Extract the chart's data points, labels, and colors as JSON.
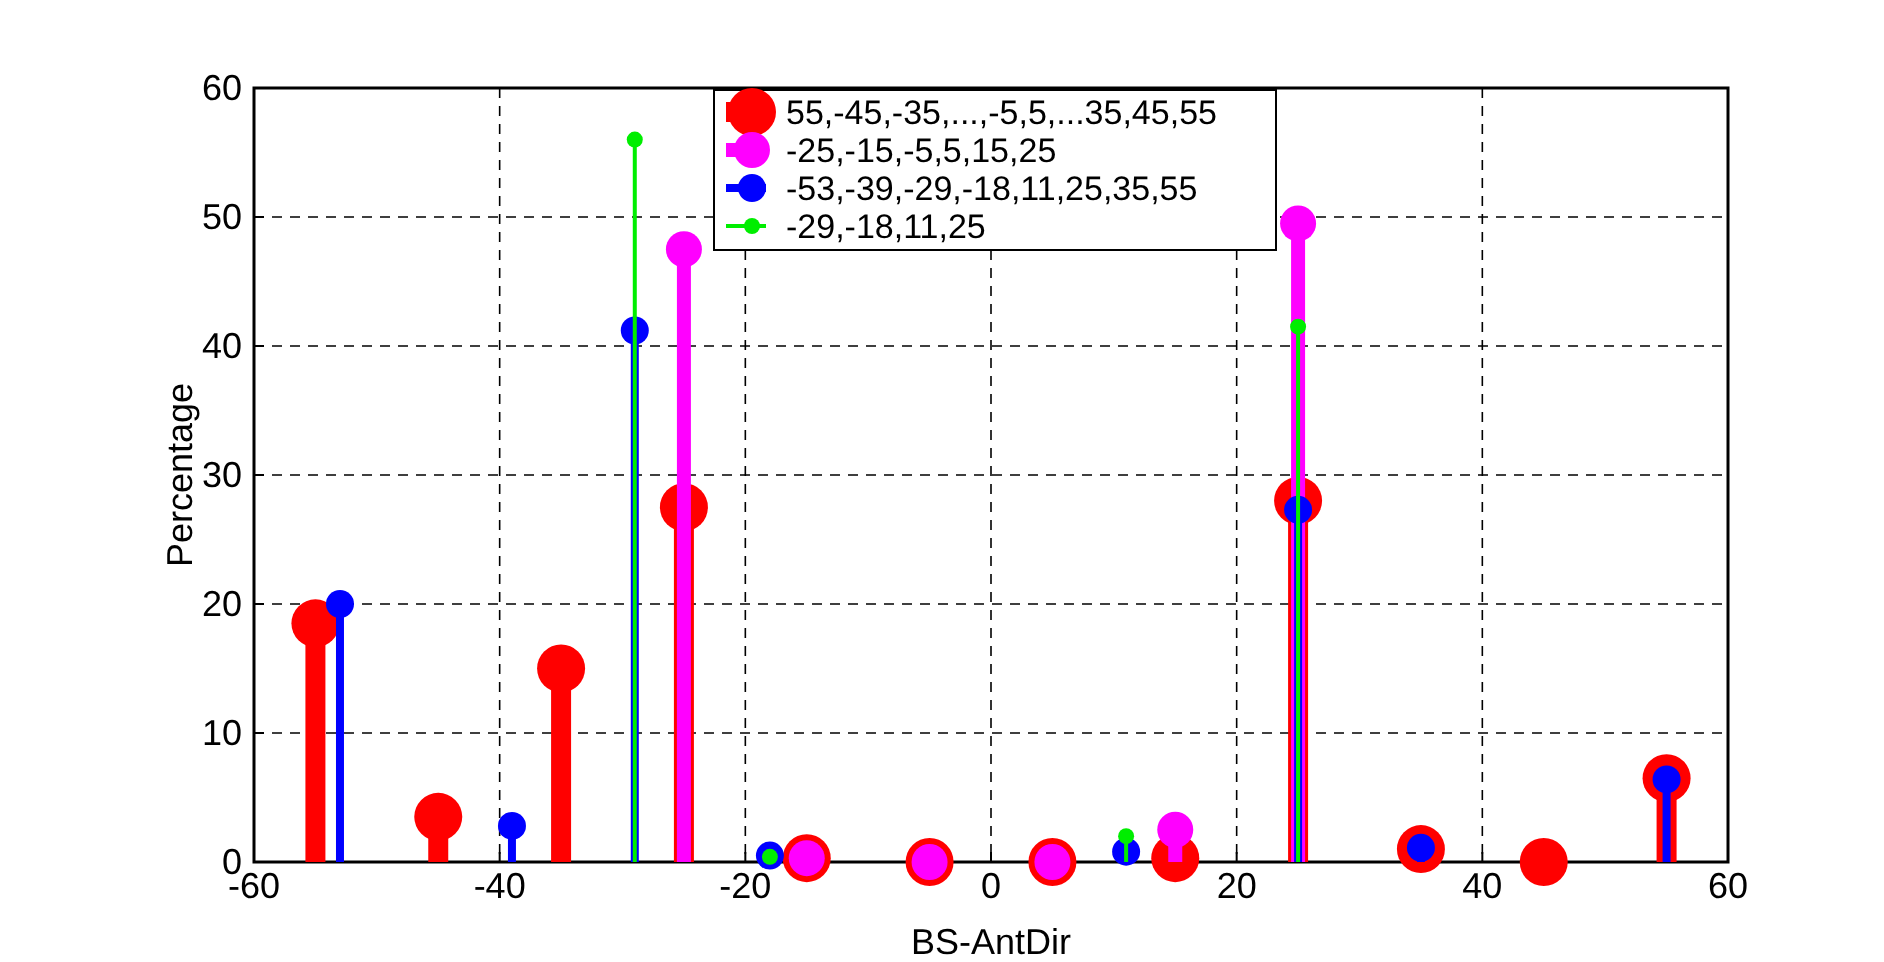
{
  "chart_data": {
    "type": "lollipop",
    "xlabel": "BS-AntDir",
    "ylabel": "Percentage",
    "xlim": [
      -60,
      60
    ],
    "xticks": [
      -60,
      -40,
      -20,
      0,
      20,
      40,
      60
    ],
    "ylim": [
      0,
      60
    ],
    "yticks": [
      0,
      10,
      20,
      30,
      40,
      50,
      60
    ],
    "grid": true,
    "legend": "top",
    "marker": "circle",
    "series": [
      {
        "name": "55,-45,-35,...,-5,5,...35,45,55",
        "color": "#ff0000",
        "x": [
          -55,
          -45,
          -35,
          -25,
          -15,
          -5,
          5,
          15,
          25,
          35,
          45,
          55
        ],
        "values": [
          18.5,
          3.5,
          15,
          27.5,
          0.3,
          0,
          0,
          0.3,
          28,
          1,
          0,
          6.5
        ]
      },
      {
        "name": "-25,-15,-5,5,15,25",
        "color": "#ff00ff",
        "x": [
          -25,
          -15,
          -5,
          5,
          15,
          25
        ],
        "values": [
          47.5,
          0.3,
          0,
          0,
          2.5,
          49.5
        ]
      },
      {
        "name": "-53,-39,-29,-18,11,25,35,55",
        "color": "#0000ff",
        "x": [
          -53,
          -39,
          -29,
          -18,
          11,
          25,
          35,
          55
        ],
        "values": [
          20,
          2.8,
          41.2,
          0.5,
          0.8,
          27.3,
          1.1,
          6.4
        ]
      },
      {
        "name": "-29,-18,11,25",
        "color": "#00ee00",
        "x": [
          -29,
          -18,
          11,
          25
        ],
        "values": [
          56,
          0.4,
          2,
          41.5
        ]
      }
    ]
  }
}
